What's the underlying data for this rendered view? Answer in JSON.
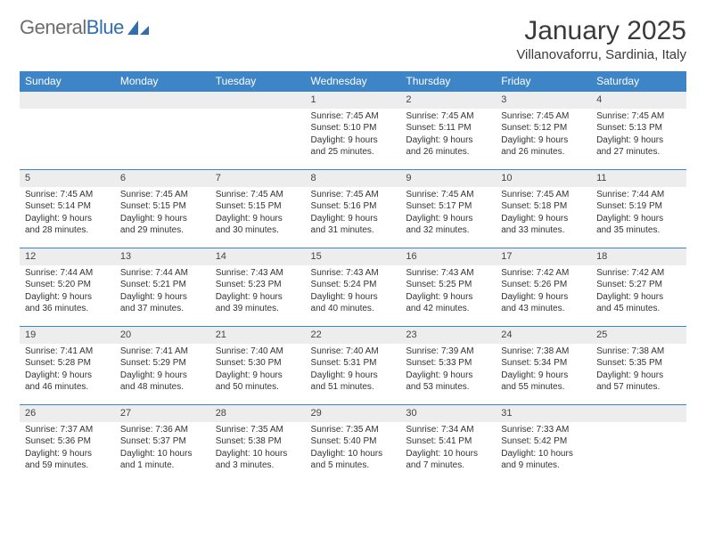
{
  "logo": {
    "text1": "General",
    "text2": "Blue"
  },
  "title": "January 2025",
  "subtitle": "Villanovaforru, Sardinia, Italy",
  "colors": {
    "header_bg": "#3d85c6",
    "header_text": "#ffffff",
    "daynum_bg": "#ededed",
    "border": "#3d85c6",
    "logo_gray": "#6e6e6e",
    "logo_blue": "#2f6fad",
    "text": "#333333"
  },
  "weekdays": [
    "Sunday",
    "Monday",
    "Tuesday",
    "Wednesday",
    "Thursday",
    "Friday",
    "Saturday"
  ],
  "weeks": [
    [
      {
        "day": "",
        "lines": []
      },
      {
        "day": "",
        "lines": []
      },
      {
        "day": "",
        "lines": []
      },
      {
        "day": "1",
        "lines": [
          "Sunrise: 7:45 AM",
          "Sunset: 5:10 PM",
          "Daylight: 9 hours",
          "and 25 minutes."
        ]
      },
      {
        "day": "2",
        "lines": [
          "Sunrise: 7:45 AM",
          "Sunset: 5:11 PM",
          "Daylight: 9 hours",
          "and 26 minutes."
        ]
      },
      {
        "day": "3",
        "lines": [
          "Sunrise: 7:45 AM",
          "Sunset: 5:12 PM",
          "Daylight: 9 hours",
          "and 26 minutes."
        ]
      },
      {
        "day": "4",
        "lines": [
          "Sunrise: 7:45 AM",
          "Sunset: 5:13 PM",
          "Daylight: 9 hours",
          "and 27 minutes."
        ]
      }
    ],
    [
      {
        "day": "5",
        "lines": [
          "Sunrise: 7:45 AM",
          "Sunset: 5:14 PM",
          "Daylight: 9 hours",
          "and 28 minutes."
        ]
      },
      {
        "day": "6",
        "lines": [
          "Sunrise: 7:45 AM",
          "Sunset: 5:15 PM",
          "Daylight: 9 hours",
          "and 29 minutes."
        ]
      },
      {
        "day": "7",
        "lines": [
          "Sunrise: 7:45 AM",
          "Sunset: 5:15 PM",
          "Daylight: 9 hours",
          "and 30 minutes."
        ]
      },
      {
        "day": "8",
        "lines": [
          "Sunrise: 7:45 AM",
          "Sunset: 5:16 PM",
          "Daylight: 9 hours",
          "and 31 minutes."
        ]
      },
      {
        "day": "9",
        "lines": [
          "Sunrise: 7:45 AM",
          "Sunset: 5:17 PM",
          "Daylight: 9 hours",
          "and 32 minutes."
        ]
      },
      {
        "day": "10",
        "lines": [
          "Sunrise: 7:45 AM",
          "Sunset: 5:18 PM",
          "Daylight: 9 hours",
          "and 33 minutes."
        ]
      },
      {
        "day": "11",
        "lines": [
          "Sunrise: 7:44 AM",
          "Sunset: 5:19 PM",
          "Daylight: 9 hours",
          "and 35 minutes."
        ]
      }
    ],
    [
      {
        "day": "12",
        "lines": [
          "Sunrise: 7:44 AM",
          "Sunset: 5:20 PM",
          "Daylight: 9 hours",
          "and 36 minutes."
        ]
      },
      {
        "day": "13",
        "lines": [
          "Sunrise: 7:44 AM",
          "Sunset: 5:21 PM",
          "Daylight: 9 hours",
          "and 37 minutes."
        ]
      },
      {
        "day": "14",
        "lines": [
          "Sunrise: 7:43 AM",
          "Sunset: 5:23 PM",
          "Daylight: 9 hours",
          "and 39 minutes."
        ]
      },
      {
        "day": "15",
        "lines": [
          "Sunrise: 7:43 AM",
          "Sunset: 5:24 PM",
          "Daylight: 9 hours",
          "and 40 minutes."
        ]
      },
      {
        "day": "16",
        "lines": [
          "Sunrise: 7:43 AM",
          "Sunset: 5:25 PM",
          "Daylight: 9 hours",
          "and 42 minutes."
        ]
      },
      {
        "day": "17",
        "lines": [
          "Sunrise: 7:42 AM",
          "Sunset: 5:26 PM",
          "Daylight: 9 hours",
          "and 43 minutes."
        ]
      },
      {
        "day": "18",
        "lines": [
          "Sunrise: 7:42 AM",
          "Sunset: 5:27 PM",
          "Daylight: 9 hours",
          "and 45 minutes."
        ]
      }
    ],
    [
      {
        "day": "19",
        "lines": [
          "Sunrise: 7:41 AM",
          "Sunset: 5:28 PM",
          "Daylight: 9 hours",
          "and 46 minutes."
        ]
      },
      {
        "day": "20",
        "lines": [
          "Sunrise: 7:41 AM",
          "Sunset: 5:29 PM",
          "Daylight: 9 hours",
          "and 48 minutes."
        ]
      },
      {
        "day": "21",
        "lines": [
          "Sunrise: 7:40 AM",
          "Sunset: 5:30 PM",
          "Daylight: 9 hours",
          "and 50 minutes."
        ]
      },
      {
        "day": "22",
        "lines": [
          "Sunrise: 7:40 AM",
          "Sunset: 5:31 PM",
          "Daylight: 9 hours",
          "and 51 minutes."
        ]
      },
      {
        "day": "23",
        "lines": [
          "Sunrise: 7:39 AM",
          "Sunset: 5:33 PM",
          "Daylight: 9 hours",
          "and 53 minutes."
        ]
      },
      {
        "day": "24",
        "lines": [
          "Sunrise: 7:38 AM",
          "Sunset: 5:34 PM",
          "Daylight: 9 hours",
          "and 55 minutes."
        ]
      },
      {
        "day": "25",
        "lines": [
          "Sunrise: 7:38 AM",
          "Sunset: 5:35 PM",
          "Daylight: 9 hours",
          "and 57 minutes."
        ]
      }
    ],
    [
      {
        "day": "26",
        "lines": [
          "Sunrise: 7:37 AM",
          "Sunset: 5:36 PM",
          "Daylight: 9 hours",
          "and 59 minutes."
        ]
      },
      {
        "day": "27",
        "lines": [
          "Sunrise: 7:36 AM",
          "Sunset: 5:37 PM",
          "Daylight: 10 hours",
          "and 1 minute."
        ]
      },
      {
        "day": "28",
        "lines": [
          "Sunrise: 7:35 AM",
          "Sunset: 5:38 PM",
          "Daylight: 10 hours",
          "and 3 minutes."
        ]
      },
      {
        "day": "29",
        "lines": [
          "Sunrise: 7:35 AM",
          "Sunset: 5:40 PM",
          "Daylight: 10 hours",
          "and 5 minutes."
        ]
      },
      {
        "day": "30",
        "lines": [
          "Sunrise: 7:34 AM",
          "Sunset: 5:41 PM",
          "Daylight: 10 hours",
          "and 7 minutes."
        ]
      },
      {
        "day": "31",
        "lines": [
          "Sunrise: 7:33 AM",
          "Sunset: 5:42 PM",
          "Daylight: 10 hours",
          "and 9 minutes."
        ]
      },
      {
        "day": "",
        "lines": []
      }
    ]
  ]
}
